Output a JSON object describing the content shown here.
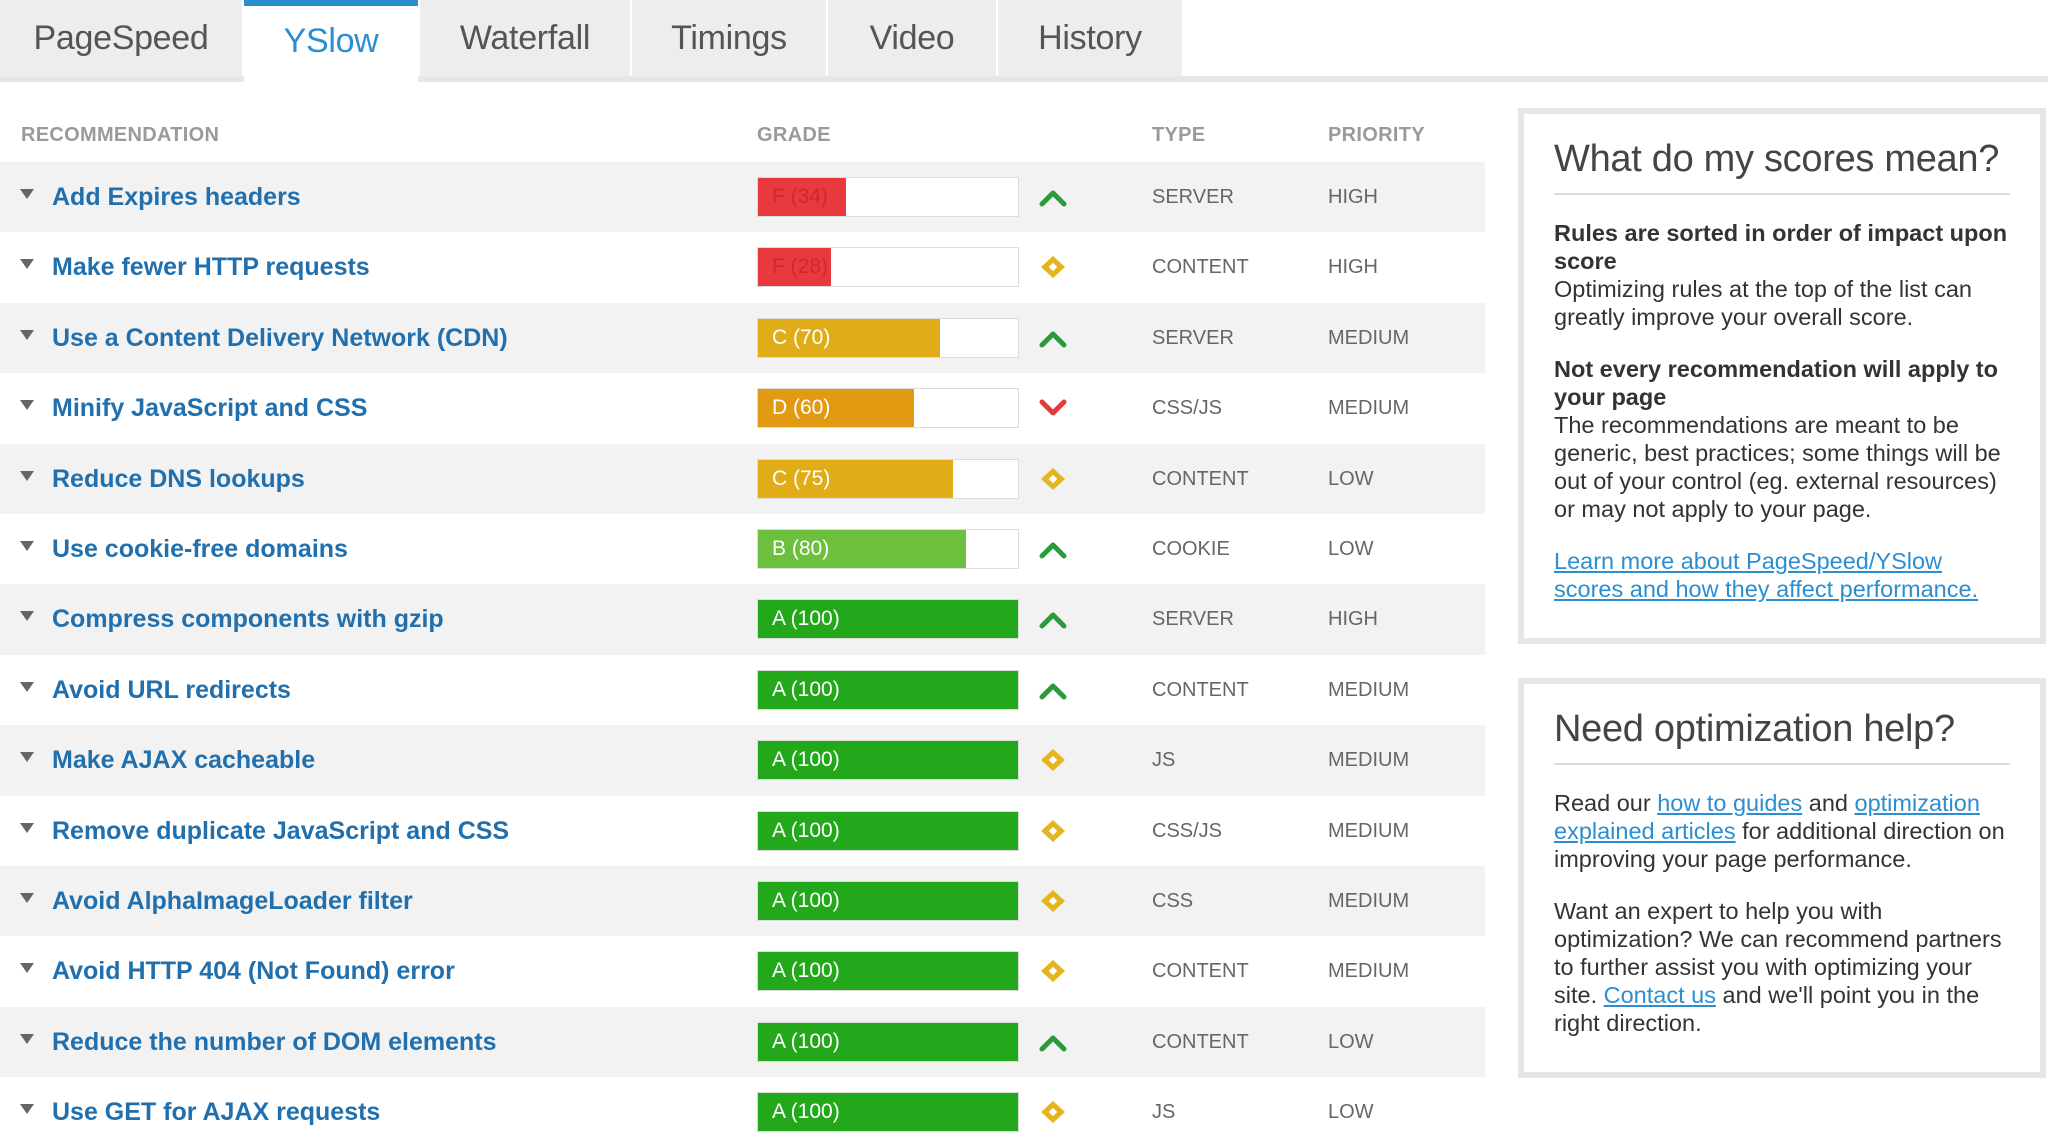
{
  "tabs": [
    {
      "label": "PageSpeed"
    },
    {
      "label": "YSlow"
    },
    {
      "label": "Waterfall"
    },
    {
      "label": "Timings"
    },
    {
      "label": "Video"
    },
    {
      "label": "History"
    }
  ],
  "active_tab": "YSlow",
  "headers": {
    "recommendation": "RECOMMENDATION",
    "grade": "GRADE",
    "type": "TYPE",
    "priority": "PRIORITY"
  },
  "colors": {
    "grade_F": "#e8393f",
    "grade_D": "#e39a13",
    "grade_C": "#e0ad19",
    "grade_B": "#6cc03e",
    "grade_A": "#22a81a",
    "trend_up": "#2a9b3c",
    "trend_down": "#e23b3b",
    "trend_neutral": "#e5b51d",
    "link": "#2b8ed1"
  },
  "rows": [
    {
      "rec": "Add Expires headers",
      "grade": "F (34)",
      "letter": "F",
      "score": 34,
      "trend": "up",
      "type": "SERVER",
      "priority": "HIGH"
    },
    {
      "rec": "Make fewer HTTP requests",
      "grade": "F (28)",
      "letter": "F",
      "score": 28,
      "trend": "neutral",
      "type": "CONTENT",
      "priority": "HIGH"
    },
    {
      "rec": "Use a Content Delivery Network (CDN)",
      "grade": "C (70)",
      "letter": "C",
      "score": 70,
      "trend": "up",
      "type": "SERVER",
      "priority": "MEDIUM"
    },
    {
      "rec": "Minify JavaScript and CSS",
      "grade": "D (60)",
      "letter": "D",
      "score": 60,
      "trend": "down",
      "type": "CSS/JS",
      "priority": "MEDIUM"
    },
    {
      "rec": "Reduce DNS lookups",
      "grade": "C (75)",
      "letter": "C",
      "score": 75,
      "trend": "neutral",
      "type": "CONTENT",
      "priority": "LOW"
    },
    {
      "rec": "Use cookie-free domains",
      "grade": "B (80)",
      "letter": "B",
      "score": 80,
      "trend": "up",
      "type": "COOKIE",
      "priority": "LOW"
    },
    {
      "rec": "Compress components with gzip",
      "grade": "A (100)",
      "letter": "A",
      "score": 100,
      "trend": "up",
      "type": "SERVER",
      "priority": "HIGH"
    },
    {
      "rec": "Avoid URL redirects",
      "grade": "A (100)",
      "letter": "A",
      "score": 100,
      "trend": "up",
      "type": "CONTENT",
      "priority": "MEDIUM"
    },
    {
      "rec": "Make AJAX cacheable",
      "grade": "A (100)",
      "letter": "A",
      "score": 100,
      "trend": "neutral",
      "type": "JS",
      "priority": "MEDIUM"
    },
    {
      "rec": "Remove duplicate JavaScript and CSS",
      "grade": "A (100)",
      "letter": "A",
      "score": 100,
      "trend": "neutral",
      "type": "CSS/JS",
      "priority": "MEDIUM"
    },
    {
      "rec": "Avoid AlphaImageLoader filter",
      "grade": "A (100)",
      "letter": "A",
      "score": 100,
      "trend": "neutral",
      "type": "CSS",
      "priority": "MEDIUM"
    },
    {
      "rec": "Avoid HTTP 404 (Not Found) error",
      "grade": "A (100)",
      "letter": "A",
      "score": 100,
      "trend": "neutral",
      "type": "CONTENT",
      "priority": "MEDIUM"
    },
    {
      "rec": "Reduce the number of DOM elements",
      "grade": "A (100)",
      "letter": "A",
      "score": 100,
      "trend": "up",
      "type": "CONTENT",
      "priority": "LOW"
    },
    {
      "rec": "Use GET for AJAX requests",
      "grade": "A (100)",
      "letter": "A",
      "score": 100,
      "trend": "neutral",
      "type": "JS",
      "priority": "LOW"
    }
  ],
  "scores_box": {
    "title": "What do my scores mean?",
    "p1_heading": "Rules are sorted in order of impact upon score",
    "p1_text": "Optimizing rules at the top of the list can greatly improve your overall score.",
    "p2_heading": "Not every recommendation will apply to your page",
    "p2_text": "The recommendations are meant to be generic, best practices; some things will be out of your control (eg. external resources) or may not apply to your page.",
    "link": "Learn more about PageSpeed/YSlow scores and how they affect performance."
  },
  "help_box": {
    "title": "Need optimization help?",
    "p1_a": "Read our ",
    "p1_link1": "how to guides",
    "p1_b": " and ",
    "p1_link2": "optimization explained articles",
    "p1_c": " for additional direction on improving your page performance.",
    "p2_a": "Want an expert to help you with optimization? We can recommend partners to further assist you with optimizing your site. ",
    "p2_link": "Contact us",
    "p2_b": " and we'll point you in the right direction."
  }
}
